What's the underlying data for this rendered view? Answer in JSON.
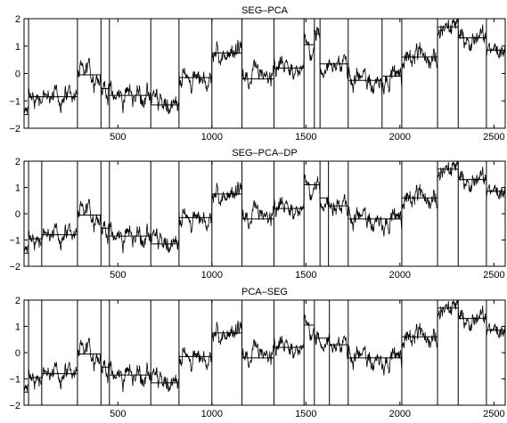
{
  "chart_data": [
    {
      "type": "line",
      "title": "SEG–PCA",
      "xlim": [
        1,
        2560
      ],
      "ylim": [
        -2,
        2
      ],
      "xticks": [
        500,
        1000,
        1500,
        2000,
        2500
      ],
      "yticks": [
        -2,
        -1,
        0,
        1,
        2
      ],
      "grid": false,
      "boundaries": [
        25,
        285,
        410,
        455,
        675,
        825,
        1000,
        1160,
        1330,
        1490,
        1545,
        1575,
        1725,
        1905,
        2010,
        2200,
        2310,
        2460
      ],
      "segment_levels": [
        -1.5,
        -0.85,
        -0.05,
        -0.55,
        -0.8,
        -1.15,
        -0.15,
        0.75,
        -0.2,
        0.2,
        1.05,
        1.45,
        0.35,
        -0.25,
        -0.1,
        0.6,
        1.7,
        1.3,
        0.85
      ]
    },
    {
      "type": "line",
      "title": "SEG–PCA–DP",
      "xlim": [
        1,
        2560
      ],
      "ylim": [
        -2,
        2
      ],
      "xticks": [
        500,
        1000,
        1500,
        2000,
        2500
      ],
      "yticks": [
        -2,
        -1,
        0,
        1,
        2
      ],
      "grid": false,
      "boundaries": [
        25,
        95,
        285,
        410,
        455,
        675,
        825,
        1000,
        1160,
        1330,
        1490,
        1575,
        1620,
        1725,
        2010,
        2200,
        2310,
        2460
      ],
      "segment_levels": [
        -1.5,
        -0.95,
        -0.8,
        -0.05,
        -0.55,
        -0.85,
        -1.15,
        -0.15,
        0.75,
        -0.2,
        0.2,
        1.1,
        0.6,
        0.3,
        -0.2,
        0.6,
        1.7,
        1.3,
        0.85
      ]
    },
    {
      "type": "line",
      "title": "PCA–SEG",
      "xlim": [
        1,
        2560
      ],
      "ylim": [
        -2,
        2
      ],
      "xticks": [
        500,
        1000,
        1500,
        2000,
        2500
      ],
      "yticks": [
        -2,
        -1,
        0,
        1,
        2
      ],
      "grid": false,
      "boundaries": [
        25,
        95,
        285,
        410,
        455,
        675,
        825,
        1000,
        1160,
        1330,
        1490,
        1545,
        1625,
        1725,
        2010,
        2200,
        2310,
        2460
      ],
      "segment_levels": [
        -1.5,
        -0.95,
        -0.8,
        -0.05,
        -0.55,
        -0.85,
        -1.15,
        -0.15,
        0.75,
        -0.2,
        0.2,
        1.05,
        0.55,
        0.3,
        -0.2,
        0.6,
        1.7,
        1.3,
        0.85
      ]
    }
  ],
  "colors": {
    "series": "#000000",
    "axes": "#000000",
    "background": "#ffffff"
  }
}
